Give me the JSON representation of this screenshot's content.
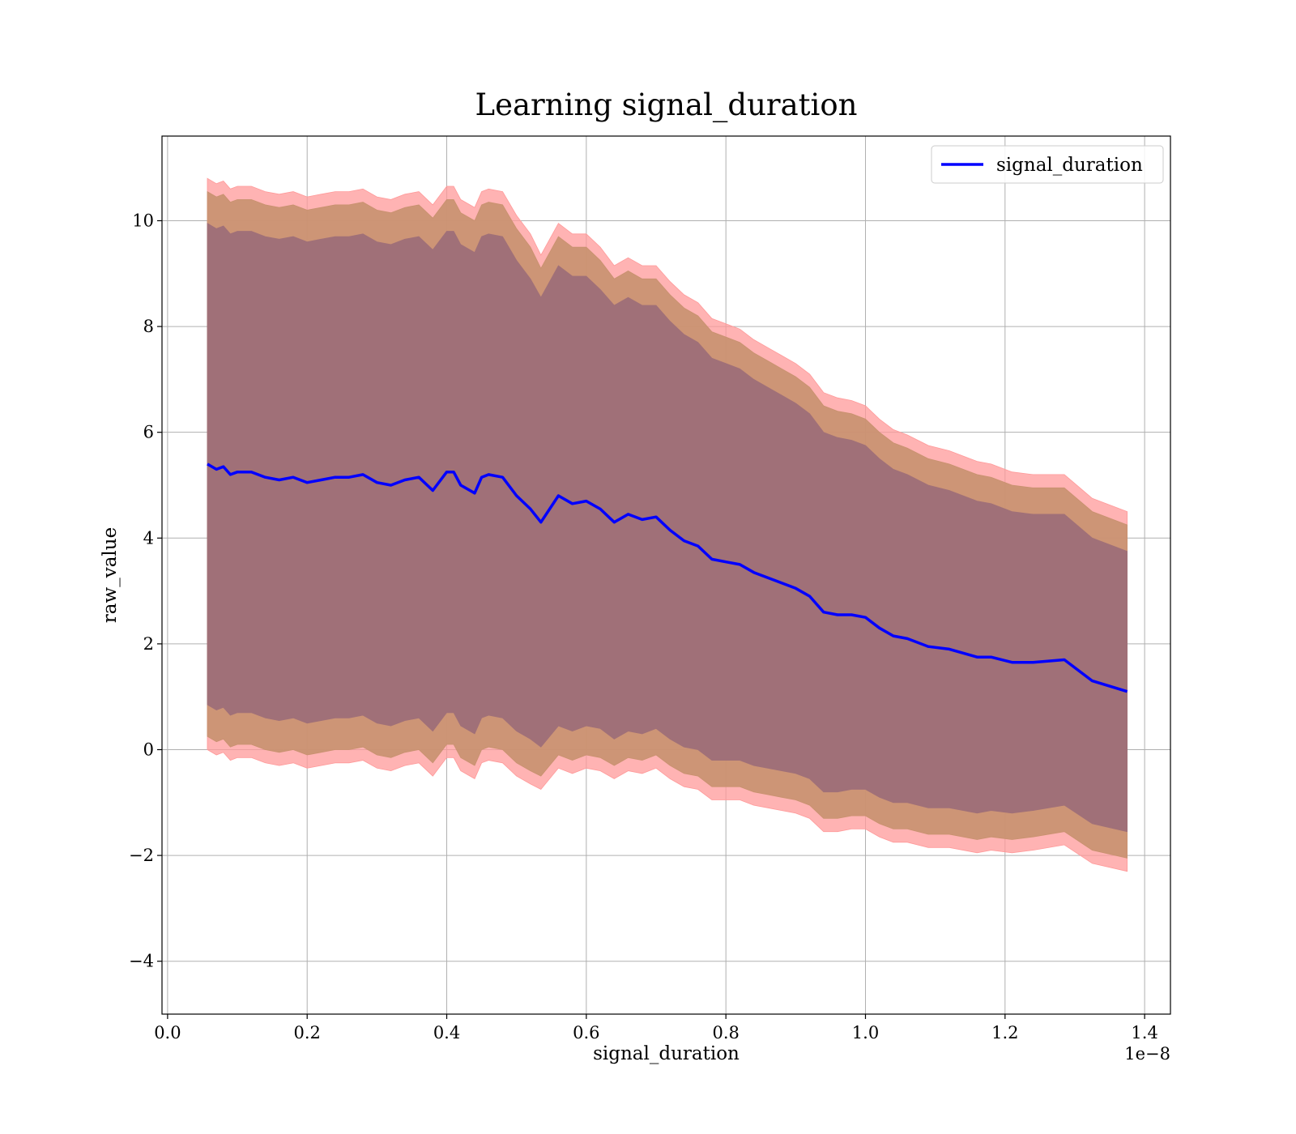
{
  "chart_data": {
    "type": "area",
    "title": "Learning signal_duration",
    "xlabel": "signal_duration",
    "ylabel": "raw_value",
    "x_offset_text": "1e−8",
    "xlim": [
      -0.008,
      1.437
    ],
    "ylim": [
      -5.0,
      11.6
    ],
    "x_tick_values": [
      0.0,
      0.2,
      0.4,
      0.6,
      0.8,
      1.0,
      1.2,
      1.4
    ],
    "x_ticks": [
      "0.0",
      "0.2",
      "0.4",
      "0.6",
      "0.8",
      "1.0",
      "1.2",
      "1.4"
    ],
    "y_tick_values": [
      -4,
      -2,
      0,
      2,
      4,
      6,
      8,
      10
    ],
    "y_ticks": [
      "−4",
      "−2",
      "0",
      "2",
      "4",
      "6",
      "8",
      "10"
    ],
    "grid": true,
    "legend_position": "top-right",
    "colors": {
      "line": "#0000ff",
      "band_outer": "#ff9999",
      "band_middle": "#c8916f",
      "band_inner": "#a07078",
      "grid": "#b0b0b0"
    },
    "x": [
      0.057,
      0.07,
      0.08,
      0.09,
      0.1,
      0.12,
      0.14,
      0.16,
      0.18,
      0.2,
      0.22,
      0.24,
      0.26,
      0.28,
      0.3,
      0.32,
      0.34,
      0.36,
      0.38,
      0.4,
      0.41,
      0.42,
      0.44,
      0.45,
      0.46,
      0.48,
      0.5,
      0.52,
      0.535,
      0.56,
      0.58,
      0.6,
      0.62,
      0.64,
      0.66,
      0.68,
      0.7,
      0.72,
      0.74,
      0.76,
      0.78,
      0.8,
      0.82,
      0.84,
      0.86,
      0.88,
      0.9,
      0.92,
      0.94,
      0.96,
      0.98,
      1.0,
      1.02,
      1.04,
      1.06,
      1.09,
      1.12,
      1.16,
      1.18,
      1.21,
      1.24,
      1.285,
      1.325,
      1.375
    ],
    "series": [
      {
        "name": "signal_duration",
        "values": [
          5.4,
          5.3,
          5.35,
          5.2,
          5.25,
          5.25,
          5.15,
          5.1,
          5.15,
          5.05,
          5.1,
          5.15,
          5.15,
          5.2,
          5.05,
          5.0,
          5.1,
          5.15,
          4.9,
          5.25,
          5.25,
          5.0,
          4.85,
          5.15,
          5.2,
          5.15,
          4.8,
          4.55,
          4.3,
          4.8,
          4.65,
          4.7,
          4.55,
          4.3,
          4.45,
          4.35,
          4.4,
          4.15,
          3.95,
          3.85,
          3.6,
          3.55,
          3.5,
          3.35,
          3.25,
          3.15,
          3.05,
          2.9,
          2.6,
          2.55,
          2.55,
          2.5,
          2.3,
          2.15,
          2.1,
          1.95,
          1.9,
          1.75,
          1.75,
          1.65,
          1.65,
          1.7,
          1.3,
          1.1
        ]
      }
    ],
    "bands": [
      {
        "upper": [
          10.8,
          10.7,
          10.75,
          10.6,
          10.65,
          10.65,
          10.55,
          10.5,
          10.55,
          10.45,
          10.5,
          10.55,
          10.55,
          10.6,
          10.45,
          10.4,
          10.5,
          10.55,
          10.3,
          10.65,
          10.65,
          10.4,
          10.25,
          10.55,
          10.6,
          10.55,
          10.1,
          9.75,
          9.35,
          9.95,
          9.75,
          9.75,
          9.5,
          9.15,
          9.3,
          9.15,
          9.15,
          8.85,
          8.6,
          8.45,
          8.15,
          8.05,
          7.95,
          7.75,
          7.6,
          7.45,
          7.3,
          7.1,
          6.75,
          6.65,
          6.6,
          6.5,
          6.25,
          6.05,
          5.95,
          5.75,
          5.65,
          5.45,
          5.4,
          5.25,
          5.2,
          5.2,
          4.75,
          4.5
        ],
        "lower": [
          0.0,
          -0.1,
          -0.05,
          -0.2,
          -0.15,
          -0.15,
          -0.25,
          -0.3,
          -0.25,
          -0.35,
          -0.3,
          -0.25,
          -0.25,
          -0.2,
          -0.35,
          -0.4,
          -0.3,
          -0.25,
          -0.5,
          -0.15,
          -0.15,
          -0.4,
          -0.55,
          -0.25,
          -0.2,
          -0.25,
          -0.5,
          -0.65,
          -0.75,
          -0.35,
          -0.45,
          -0.35,
          -0.4,
          -0.55,
          -0.4,
          -0.45,
          -0.35,
          -0.55,
          -0.7,
          -0.75,
          -0.95,
          -0.95,
          -0.95,
          -1.05,
          -1.1,
          -1.15,
          -1.2,
          -1.3,
          -1.55,
          -1.55,
          -1.5,
          -1.5,
          -1.65,
          -1.75,
          -1.75,
          -1.85,
          -1.85,
          -1.95,
          -1.9,
          -1.95,
          -1.9,
          -1.8,
          -2.15,
          -2.3
        ]
      },
      {
        "upper": [
          10.55,
          10.45,
          10.5,
          10.35,
          10.4,
          10.4,
          10.3,
          10.25,
          10.3,
          10.2,
          10.25,
          10.3,
          10.3,
          10.35,
          10.2,
          10.15,
          10.25,
          10.3,
          10.05,
          10.4,
          10.4,
          10.15,
          10.0,
          10.3,
          10.35,
          10.3,
          9.85,
          9.5,
          9.1,
          9.7,
          9.5,
          9.5,
          9.25,
          8.9,
          9.05,
          8.9,
          8.9,
          8.6,
          8.35,
          8.2,
          7.9,
          7.8,
          7.7,
          7.5,
          7.35,
          7.2,
          7.05,
          6.85,
          6.5,
          6.4,
          6.35,
          6.25,
          6.0,
          5.8,
          5.7,
          5.5,
          5.4,
          5.2,
          5.15,
          5.0,
          4.95,
          4.95,
          4.5,
          4.25
        ],
        "lower": [
          0.25,
          0.15,
          0.2,
          0.05,
          0.1,
          0.1,
          0.0,
          -0.05,
          0.0,
          -0.1,
          -0.05,
          0.0,
          0.0,
          0.05,
          -0.1,
          -0.15,
          -0.05,
          0.0,
          -0.25,
          0.1,
          0.1,
          -0.15,
          -0.3,
          0.0,
          0.05,
          0.0,
          -0.25,
          -0.4,
          -0.5,
          -0.1,
          -0.2,
          -0.1,
          -0.15,
          -0.3,
          -0.15,
          -0.2,
          -0.1,
          -0.3,
          -0.45,
          -0.5,
          -0.7,
          -0.7,
          -0.7,
          -0.8,
          -0.85,
          -0.9,
          -0.95,
          -1.05,
          -1.3,
          -1.3,
          -1.25,
          -1.25,
          -1.4,
          -1.5,
          -1.5,
          -1.6,
          -1.6,
          -1.7,
          -1.65,
          -1.7,
          -1.65,
          -1.55,
          -1.9,
          -2.05
        ]
      },
      {
        "upper": [
          9.95,
          9.85,
          9.9,
          9.75,
          9.8,
          9.8,
          9.7,
          9.65,
          9.7,
          9.6,
          9.65,
          9.7,
          9.7,
          9.75,
          9.6,
          9.55,
          9.65,
          9.7,
          9.45,
          9.8,
          9.8,
          9.55,
          9.4,
          9.7,
          9.75,
          9.7,
          9.25,
          8.9,
          8.55,
          9.15,
          8.95,
          8.95,
          8.7,
          8.4,
          8.55,
          8.4,
          8.4,
          8.1,
          7.85,
          7.7,
          7.4,
          7.3,
          7.2,
          7.0,
          6.85,
          6.7,
          6.55,
          6.35,
          6.0,
          5.9,
          5.85,
          5.75,
          5.5,
          5.3,
          5.2,
          5.0,
          4.9,
          4.7,
          4.65,
          4.5,
          4.45,
          4.45,
          4.0,
          3.75
        ],
        "lower": [
          0.85,
          0.75,
          0.8,
          0.65,
          0.7,
          0.7,
          0.6,
          0.55,
          0.6,
          0.5,
          0.55,
          0.6,
          0.6,
          0.65,
          0.5,
          0.45,
          0.55,
          0.6,
          0.35,
          0.7,
          0.7,
          0.45,
          0.3,
          0.6,
          0.65,
          0.6,
          0.35,
          0.2,
          0.05,
          0.45,
          0.35,
          0.45,
          0.4,
          0.2,
          0.35,
          0.3,
          0.4,
          0.2,
          0.05,
          0.0,
          -0.2,
          -0.2,
          -0.2,
          -0.3,
          -0.35,
          -0.4,
          -0.45,
          -0.55,
          -0.8,
          -0.8,
          -0.75,
          -0.75,
          -0.9,
          -1.0,
          -1.0,
          -1.1,
          -1.1,
          -1.2,
          -1.15,
          -1.2,
          -1.15,
          -1.05,
          -1.4,
          -1.55
        ]
      }
    ]
  }
}
